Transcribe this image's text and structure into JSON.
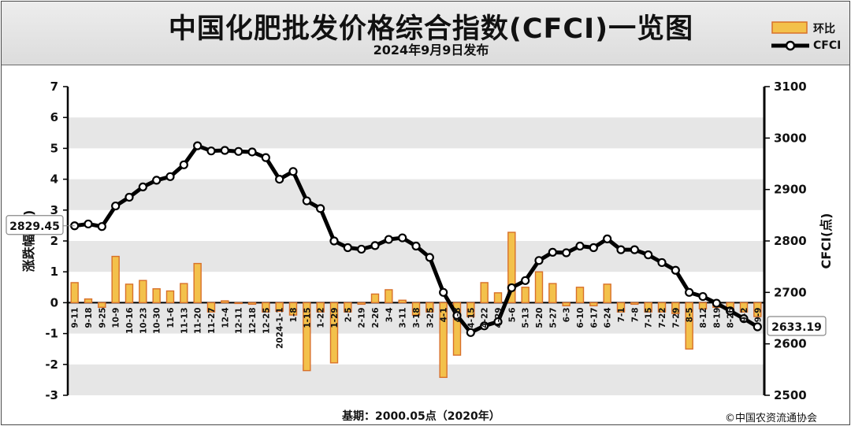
{
  "header": {
    "title": "中国化肥批发价格综合指数(CFCI)一览图",
    "subtitle": "2024年9月9日发布"
  },
  "legend": {
    "bar_label": "环比",
    "line_label": "CFCI"
  },
  "footer": {
    "base_label": "基期：2000.05点（2020年）",
    "copyright": "©中国农资流通协会"
  },
  "callouts": {
    "start": "2829.45",
    "end": "2633.19"
  },
  "colors": {
    "bar_fill": "#f3c14b",
    "bar_stroke": "#d8702a",
    "line": "#000000",
    "grid_band": "#e6e6e6"
  },
  "chart_data": {
    "type": "bar+line",
    "x_categories": [
      "9-11",
      "9-18",
      "9-25",
      "10-9",
      "10-16",
      "10-23",
      "10-30",
      "11-6",
      "11-13",
      "11-20",
      "11-27",
      "12-4",
      "12-11",
      "12-18",
      "12-25",
      "2024-1-1",
      "1-8",
      "1-15",
      "1-22",
      "1-29",
      "2-5",
      "2-19",
      "2-26",
      "3-4",
      "3-11",
      "3-18",
      "3-25",
      "4-1",
      "4-8",
      "4-15",
      "4-22",
      "4-29",
      "5-6",
      "5-13",
      "5-20",
      "5-27",
      "6-3",
      "6-10",
      "6-17",
      "6-24",
      "7-1",
      "7-8",
      "7-15",
      "7-22",
      "7-29",
      "8-5",
      "8-12",
      "8-19",
      "8-26",
      "9-2",
      "9-9"
    ],
    "ylabel_left": "涨跌幅(%)",
    "ylabel_right": "CFCI(点)",
    "ylim_left": [
      -3,
      7
    ],
    "ylim_right": [
      2500,
      3100
    ],
    "yticks_left": [
      "7",
      "6",
      "5",
      "4",
      "3",
      "2",
      "1",
      "0",
      "-1",
      "-2",
      "-3"
    ],
    "yticks_right": [
      "3100",
      "3000",
      "2900",
      "2800",
      "2700",
      "2600",
      "2500"
    ],
    "series": [
      {
        "name": "环比",
        "type": "bar",
        "values": [
          0.65,
          0.12,
          -0.15,
          1.5,
          0.6,
          0.72,
          0.45,
          0.38,
          0.62,
          1.27,
          -0.3,
          0.06,
          -0.02,
          -0.05,
          -0.3,
          -0.28,
          -0.4,
          -2.2,
          -0.3,
          -1.95,
          -0.3,
          -0.05,
          0.28,
          0.42,
          0.08,
          -0.4,
          -0.3,
          -2.42,
          -1.7,
          -0.45,
          0.65,
          0.32,
          2.28,
          0.5,
          1.0,
          0.62,
          -0.1,
          0.5,
          -0.1,
          0.6,
          -0.3,
          -0.05,
          -0.3,
          -0.3,
          -0.35,
          -1.5,
          -0.2,
          -0.15,
          -0.2,
          -0.3,
          -0.45
        ]
      },
      {
        "name": "CFCI",
        "type": "line",
        "values": [
          2829.45,
          2833,
          2828,
          2868,
          2885,
          2905,
          2918,
          2925,
          2948,
          2985,
          2975,
          2976,
          2974,
          2973,
          2962,
          2920,
          2935,
          2878,
          2863,
          2800,
          2787,
          2784,
          2791,
          2803,
          2806,
          2790,
          2768,
          2700,
          2655,
          2622,
          2635,
          2643,
          2709,
          2723,
          2762,
          2778,
          2777,
          2790,
          2787,
          2804,
          2783,
          2783,
          2773,
          2758,
          2743,
          2700,
          2692,
          2679,
          2664,
          2649,
          2633.19
        ]
      }
    ]
  }
}
